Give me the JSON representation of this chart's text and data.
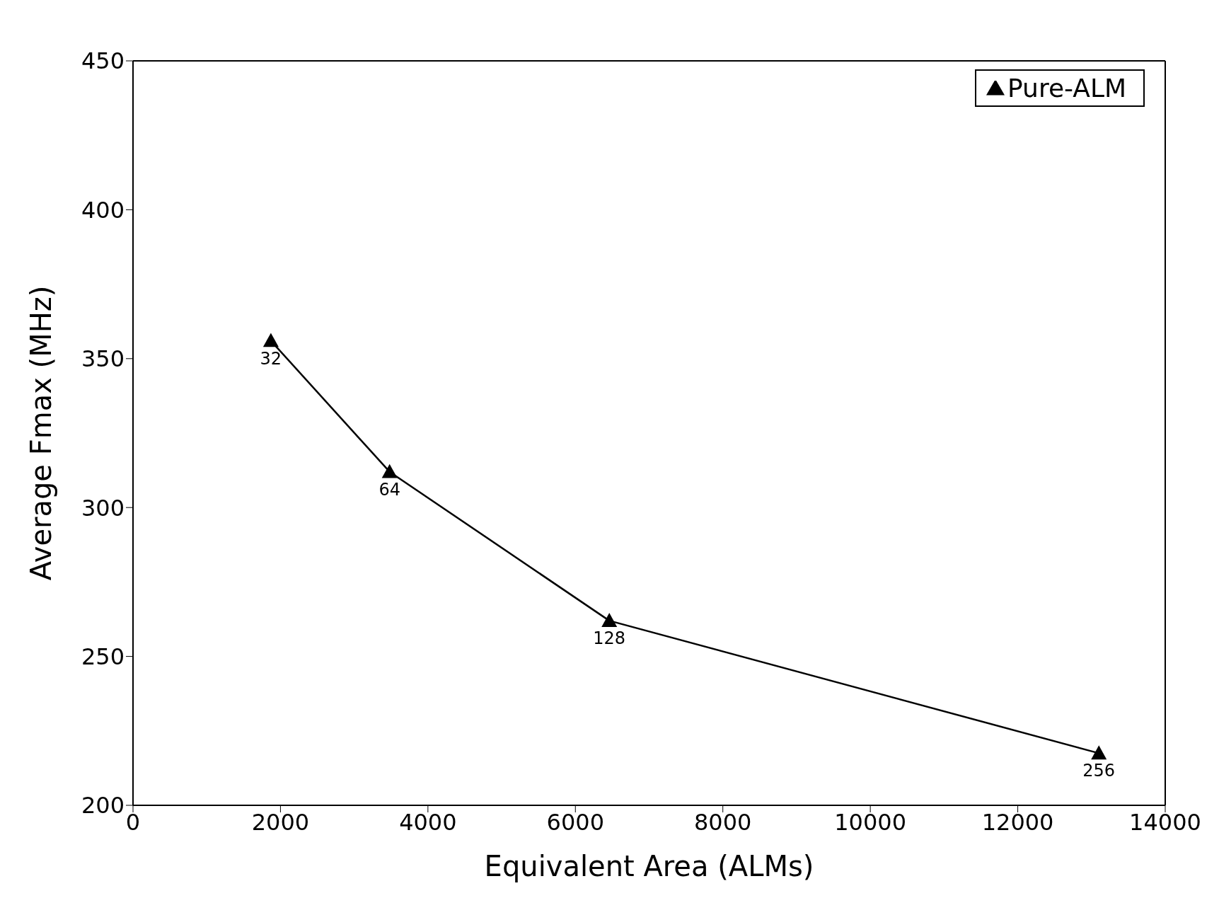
{
  "chart_data": {
    "type": "line",
    "xlabel": "Equivalent Area (ALMs)",
    "ylabel": "Average Fmax (MHz)",
    "x": [
      1870,
      3480,
      6460,
      13100
    ],
    "series": [
      {
        "name": "Pure-ALM",
        "color": "#000000",
        "values": [
          356,
          312,
          262,
          217.5
        ]
      }
    ],
    "xlim": [
      0,
      14000
    ],
    "xticks": [
      0,
      2000,
      4000,
      6000,
      8000,
      10000,
      12000,
      14000
    ],
    "ylim": [
      200,
      450
    ],
    "yticks": [
      200,
      250,
      300,
      350,
      400,
      450
    ],
    "annotations": [
      {
        "text": "32",
        "x": 1870,
        "y": 356
      },
      {
        "text": "64",
        "x": 3480,
        "y": 312
      },
      {
        "text": "128",
        "x": 6460,
        "y": 262
      },
      {
        "text": "256",
        "x": 13100,
        "y": 217.5
      }
    ],
    "legend": "top right",
    "marker": "triangle",
    "line_style": "solid",
    "grid": false
  }
}
